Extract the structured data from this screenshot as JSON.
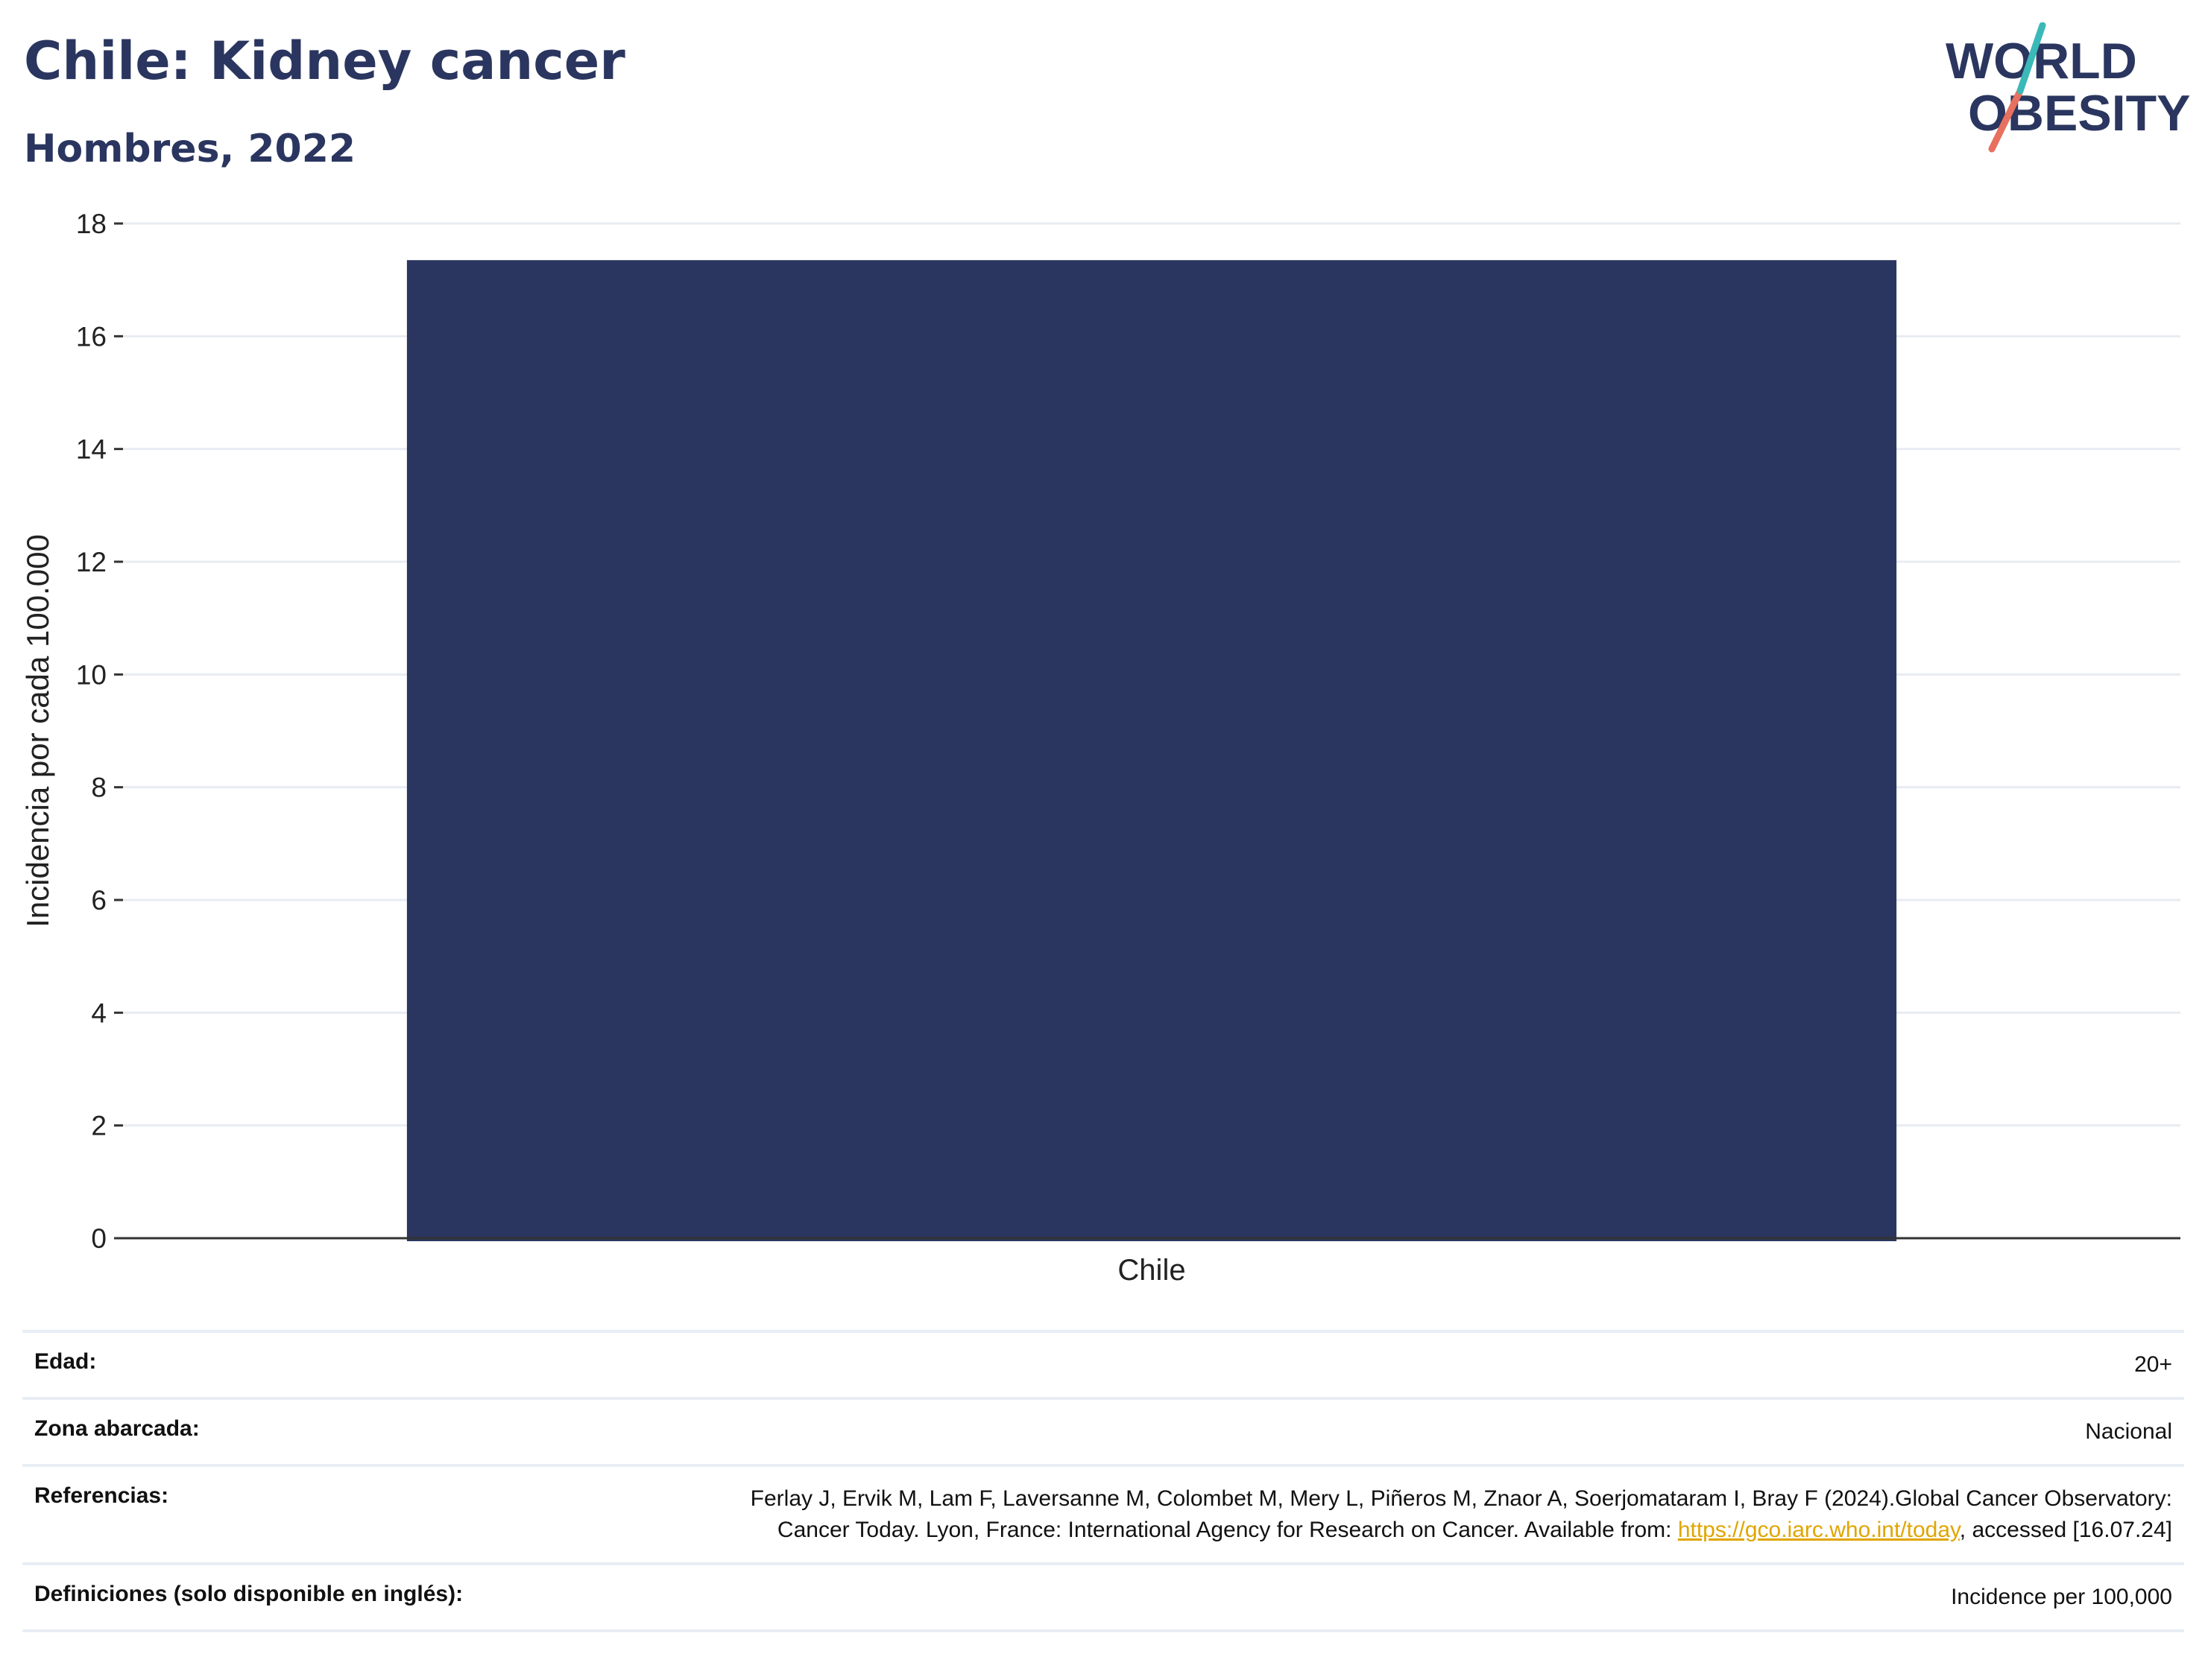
{
  "header": {
    "title": "Chile: Kidney cancer",
    "subtitle": "Hombres, 2022"
  },
  "logo": {
    "line1": "WORLD",
    "line2": "OBESITY",
    "accent_colors": [
      "#3bb8b8",
      "#e8705f"
    ]
  },
  "chart_data": {
    "type": "bar",
    "categories": [
      "Chile"
    ],
    "values": [
      17.35
    ],
    "ylabel": "Incidencia por cada 100.000",
    "ylim": [
      0,
      18
    ],
    "yticks": [
      0,
      2,
      4,
      6,
      8,
      10,
      12,
      14,
      16,
      18
    ],
    "grid": true,
    "bar_color": "#2a365f"
  },
  "info": {
    "age_label": "Edad:",
    "age_value": "20+",
    "coverage_label": "Zona abarcada:",
    "coverage_value": "Nacional",
    "references_label": "Referencias:",
    "references_text_1": "Ferlay J, Ervik M, Lam F, Laversanne M, Colombet M, Mery L, Piñeros M, Znaor A, Soerjomataram I, Bray F (2024).Global Cancer Observatory: Cancer Today. Lyon, France: International Agency for Research on Cancer. Available from: ",
    "references_link": "https://gco.iarc.who.int/today",
    "references_text_2": ", accessed [16.07.24]",
    "definitions_label": "Definiciones (solo disponible en inglés):",
    "definitions_value": "Incidence per 100,000"
  }
}
